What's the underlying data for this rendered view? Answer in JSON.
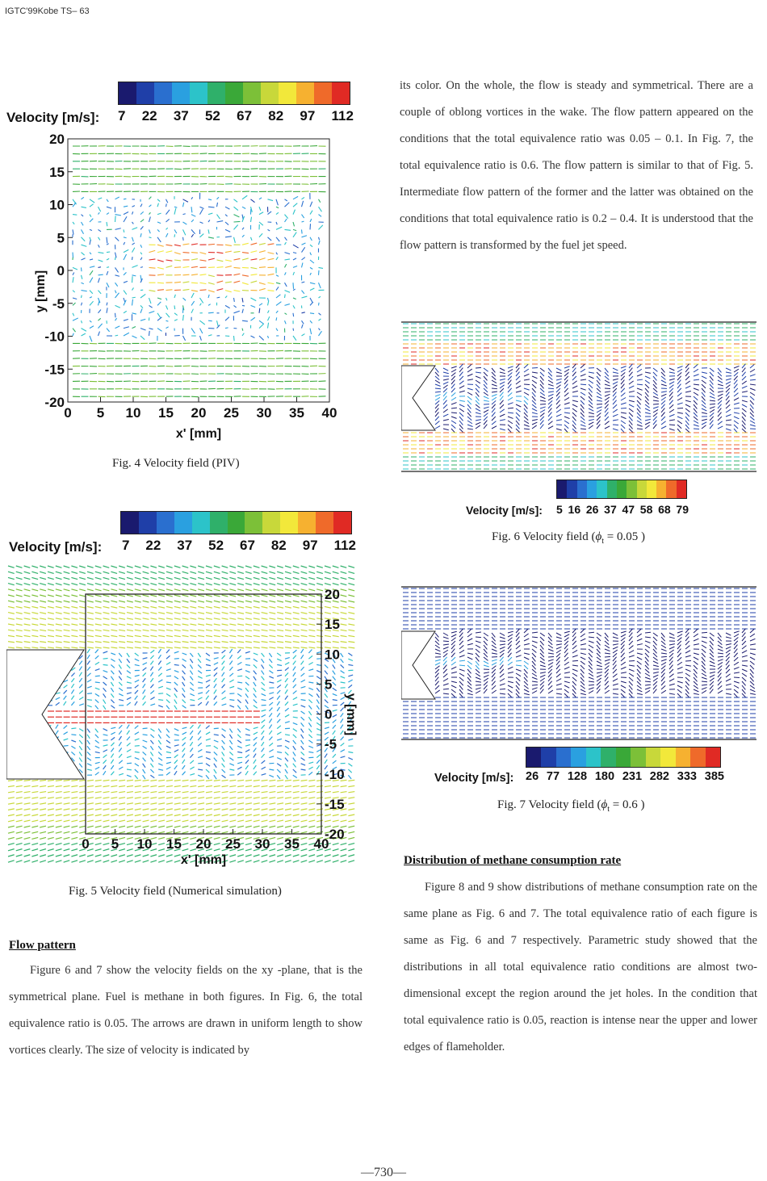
{
  "header": "IGTC'99Kobe TS– 63",
  "colormap": [
    "#1a1a6e",
    "#1f3fa8",
    "#2a6fcf",
    "#2aa0e0",
    "#2cc3c9",
    "#2fb06a",
    "#3aa838",
    "#7cc038",
    "#c8d83a",
    "#f2e83a",
    "#f6b130",
    "#ef6a2a",
    "#e02a24"
  ],
  "fig4": {
    "velocity_label": "Velocity [m/s]:",
    "scale": [
      "7",
      "22",
      "37",
      "52",
      "67",
      "82",
      "97",
      "112"
    ],
    "yticks": [
      "20",
      "15",
      "10",
      "5",
      "0",
      "-5",
      "-10",
      "-15",
      "-20"
    ],
    "xticks": [
      "0",
      "5",
      "10",
      "15",
      "20",
      "25",
      "30",
      "35",
      "40"
    ],
    "ylabel": "y [mm]",
    "xlabel": "x' [mm]",
    "caption": "Fig. 4 Velocity field (PIV)"
  },
  "fig5": {
    "velocity_label": "Velocity [m/s]:",
    "scale": [
      "7",
      "22",
      "37",
      "52",
      "67",
      "82",
      "97",
      "112"
    ],
    "yticks": [
      "20",
      "15",
      "10",
      "5",
      "0",
      "-5",
      "-10",
      "-15",
      "-20"
    ],
    "xticks": [
      "0",
      "5",
      "10",
      "15",
      "20",
      "25",
      "30",
      "35",
      "40"
    ],
    "ylabel": "y [mm]",
    "xlabel": "x' [mm]",
    "caption": "Fig. 5 Velocity field (Numerical simulation)"
  },
  "fig6": {
    "velocity_label": "Velocity [m/s]:",
    "scale": [
      "5",
      "16",
      "26",
      "37",
      "47",
      "58",
      "68",
      "79"
    ],
    "caption_prefix": "Fig. 6 Velocity field (",
    "phi": "ϕ",
    "sub": "t",
    "caption_suffix": " = 0.05 )"
  },
  "fig7": {
    "velocity_label": "Velocity [m/s]:",
    "scale": [
      "26",
      "77",
      "128",
      "180",
      "231",
      "282",
      "333",
      "385"
    ],
    "caption_prefix": "Fig. 7 Velocity field (",
    "phi": "ϕ",
    "sub": "t",
    "caption_suffix": " = 0.6 )"
  },
  "right_top_text": "its color. On the whole, the flow is steady and symmetrical. There are a couple of oblong vortices in the wake. The flow pattern appeared on the conditions that the total equivalence ratio was 0.05 – 0.1. In Fig. 7, the total equivalence ratio is 0.6. The flow pattern is similar to that of Fig. 5. Intermediate flow pattern of the former and the latter was obtained on the conditions that total equivalence ratio is 0.2 – 0.4. It is understood that the flow pattern is transformed by the fuel jet speed.",
  "flow_pattern": {
    "heading": "Flow pattern",
    "text": "Figure 6 and 7 show the velocity fields on the xy -plane, that is the symmetrical plane. Fuel is methane in both figures. In Fig. 6, the total equivalence ratio is 0.05. The arrows are drawn in uniform length to show vortices clearly. The size of velocity is indicated by"
  },
  "methane": {
    "heading": "Distribution of methane consumption rate",
    "text": "Figure 8 and 9 show distributions of methane consumption rate on the same plane as Fig. 6 and 7. The total equivalence ratio of each figure is same as Fig. 6 and 7 respectively. Parametric study showed that the distributions in all total equivalence ratio conditions are almost two-dimensional except the region around the jet holes. In the condition that total equivalence ratio is 0.05, reaction is intense near the upper and lower edges of flameholder."
  },
  "page_number": "—730—"
}
